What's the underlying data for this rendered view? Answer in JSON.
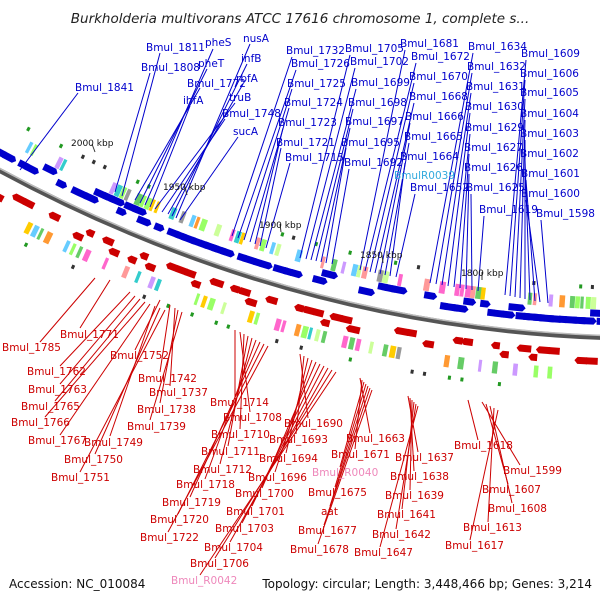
{
  "header": {
    "title": "Burkholderia multivorans ATCC 17616 chromosome 1, complete s..."
  },
  "footer": {
    "accession": "Accession: NC_010084",
    "topology": "Topology: circular; Length: 3,448,466 bp; Genes: 3,214"
  },
  "colors": {
    "forward": "#0000cc",
    "reverse": "#cc0000",
    "rna_forward": "#33aadd",
    "rna_reverse": "#ee88bb",
    "backbone": "#888888"
  },
  "scale_ticks": [
    "2000 kbp",
    "1950 kbp",
    "1900 kbp",
    "1850 kbp",
    "1800 kbp"
  ],
  "top_labels": [
    "Bmul_1811",
    "pheS",
    "nusA",
    "Bmul_1808",
    "pheT",
    "infB",
    "Bmul_1841",
    "Bmul_1772",
    "rbfA",
    "ihfA",
    "truB",
    "Bmul_1748",
    "sucA",
    "Bmul_1732",
    "Bmul_1726",
    "Bmul_1725",
    "Bmul_1724",
    "Bmul_1723",
    "Bmul_1721",
    "Bmul_1715",
    "Bmul_1705",
    "Bmul_1702",
    "Bmul_1699",
    "Bmul_1698",
    "Bmul_1697",
    "Bmul_1695",
    "Bmul_1692",
    "Bmul_1681",
    "Bmul_1672",
    "Bmul_1670",
    "Bmul_1668",
    "Bmul_1666",
    "Bmul_1665",
    "Bmul_1664",
    "BmulR0039",
    "Bmul_1652",
    "Bmul_1634",
    "Bmul_1632",
    "Bmul_1631",
    "Bmul_1630",
    "Bmul_1629",
    "Bmul_1627",
    "Bmul_1626",
    "Bmul_1625",
    "Bmul_1619",
    "Bmul_1609",
    "Bmul_1606",
    "Bmul_1605",
    "Bmul_1604",
    "Bmul_1603",
    "Bmul_1602",
    "Bmul_1601",
    "Bmul_1600",
    "Bmul_1598"
  ],
  "bottom_labels": [
    "Bmul_1771",
    "Bmul_1785",
    "Bmul_1752",
    "Bmul_1762",
    "Bmul_1742",
    "Bmul_1763",
    "Bmul_1737",
    "Bmul_1765",
    "Bmul_1738",
    "Bmul_1766",
    "Bmul_1739",
    "Bmul_1767",
    "Bmul_1749",
    "Bmul_1750",
    "Bmul_1751",
    "Bmul_1714",
    "Bmul_1708",
    "Bmul_1710",
    "Bmul_1711",
    "Bmul_1712",
    "Bmul_1718",
    "Bmul_1719",
    "Bmul_1720",
    "Bmul_1722",
    "Bmul_1690",
    "Bmul_1693",
    "Bmul_1694",
    "Bmul_1696",
    "Bmul_1700",
    "Bmul_1701",
    "Bmul_1703",
    "Bmul_1704",
    "Bmul_1706",
    "Bmul_R0042",
    "Bmul_1663",
    "Bmul_1671",
    "Bmul_R0040",
    "Bmul_1675",
    "aat",
    "Bmul_1677",
    "Bmul_1678",
    "Bmul_1637",
    "Bmul_1638",
    "Bmul_1639",
    "Bmul_1641",
    "Bmul_1642",
    "Bmul_1647",
    "Bmul_1618",
    "Bmul_1599",
    "Bmul_1607",
    "Bmul_1608",
    "Bmul_1613",
    "Bmul_1617"
  ]
}
